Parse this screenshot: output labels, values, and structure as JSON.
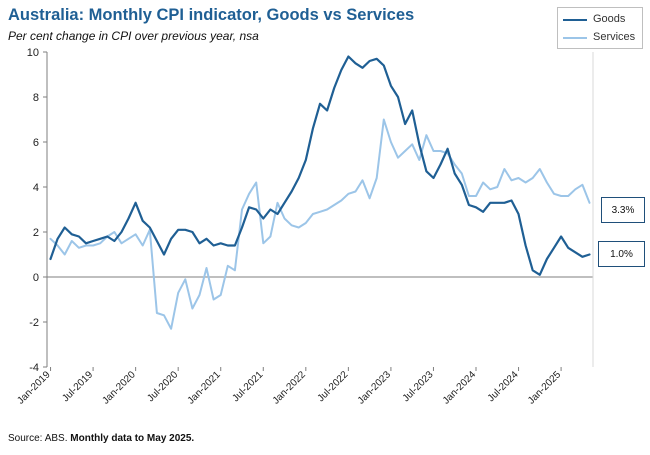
{
  "chart_data": {
    "type": "line",
    "title": "Australia: Monthly CPI indicator, Goods vs Services",
    "subtitle": "Per cent change in CPI over previous year, nsa",
    "ylim": [
      -4,
      10
    ],
    "yticks": [
      -4,
      -2,
      0,
      2,
      4,
      6,
      8,
      10
    ],
    "xtick_labels": [
      "Jan-2019",
      "Jul-2019",
      "Jan-2020",
      "Jul-2020",
      "Jan-2021",
      "Jul-2021",
      "Jan-2022",
      "Jul-2022",
      "Jan-2023",
      "Jul-2023",
      "Jan-2024",
      "Jul-2024",
      "Jan-2025"
    ],
    "xtick_positions": [
      0,
      6,
      12,
      18,
      24,
      30,
      36,
      42,
      48,
      54,
      60,
      66,
      72
    ],
    "x_count": 77,
    "legend": [
      "Goods",
      "Services"
    ],
    "series": [
      {
        "name": "Goods",
        "color": "#1f5f94",
        "values": [
          0.8,
          1.7,
          2.2,
          1.9,
          1.8,
          1.5,
          1.6,
          1.7,
          1.8,
          1.6,
          2.0,
          2.6,
          3.3,
          2.5,
          2.2,
          1.6,
          1.0,
          1.7,
          2.1,
          2.1,
          2.0,
          1.5,
          1.7,
          1.4,
          1.5,
          1.4,
          1.4,
          2.2,
          3.1,
          3.0,
          2.6,
          3.0,
          2.8,
          3.3,
          3.8,
          4.4,
          5.2,
          6.6,
          7.7,
          7.4,
          8.4,
          9.2,
          9.8,
          9.5,
          9.3,
          9.6,
          9.7,
          9.4,
          8.5,
          8.0,
          6.8,
          7.4,
          5.9,
          4.7,
          4.4,
          5.0,
          5.7,
          4.6,
          4.1,
          3.2,
          3.1,
          2.9,
          3.3,
          3.3,
          3.3,
          3.4,
          2.8,
          1.4,
          0.3,
          0.1,
          0.8,
          1.3,
          1.8,
          1.3,
          1.1,
          0.9,
          1.0
        ]
      },
      {
        "name": "Services",
        "color": "#9cc5e8",
        "values": [
          1.7,
          1.4,
          1.0,
          1.6,
          1.3,
          1.4,
          1.4,
          1.5,
          1.8,
          2.0,
          1.5,
          1.7,
          1.9,
          1.4,
          2.1,
          -1.6,
          -1.7,
          -2.3,
          -0.7,
          -0.1,
          -1.4,
          -0.8,
          0.4,
          -1.0,
          -0.8,
          0.5,
          0.3,
          3.0,
          3.7,
          4.2,
          1.5,
          1.8,
          3.3,
          2.6,
          2.3,
          2.2,
          2.4,
          2.8,
          2.9,
          3.0,
          3.2,
          3.4,
          3.7,
          3.8,
          4.3,
          3.5,
          4.4,
          7.0,
          6.0,
          5.3,
          5.6,
          5.9,
          5.2,
          6.3,
          5.6,
          5.6,
          5.5,
          5.0,
          4.6,
          3.6,
          3.6,
          4.2,
          3.9,
          4.0,
          4.8,
          4.3,
          4.4,
          4.2,
          4.4,
          4.8,
          4.2,
          3.7,
          3.6,
          3.6,
          3.9,
          4.1,
          3.3
        ]
      }
    ],
    "callouts": [
      {
        "series": "Services",
        "label": "3.3%"
      },
      {
        "series": "Goods",
        "label": "1.0%"
      }
    ]
  },
  "source": {
    "prefix": "Source: ABS. ",
    "bold": "Monthly data to May 2025."
  }
}
